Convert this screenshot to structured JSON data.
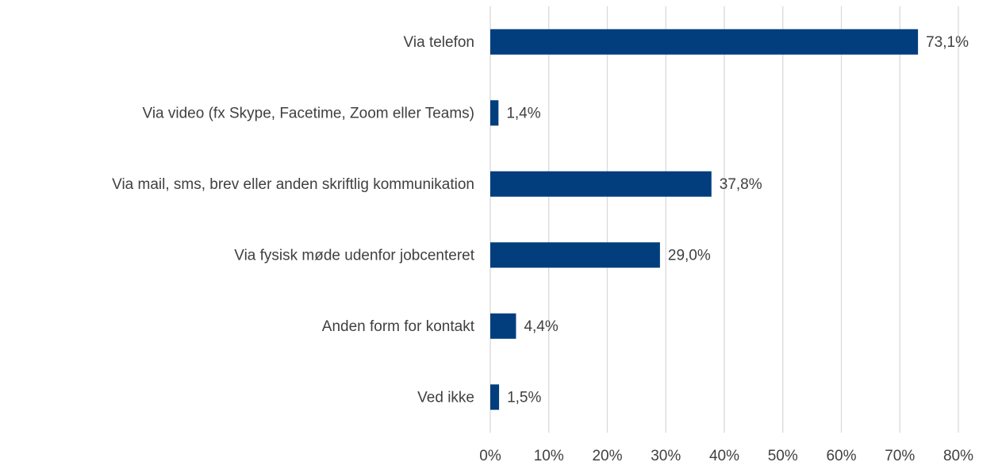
{
  "chart_data": {
    "type": "barh",
    "categories": [
      "Via telefon",
      "Via video (fx Skype, Facetime, Zoom eller Teams)",
      "Via mail, sms, brev eller anden skriftlig kommunikation",
      "Via fysisk møde udenfor jobcenteret",
      "Anden form for kontakt",
      "Ved ikke"
    ],
    "values": [
      73.1,
      1.4,
      37.8,
      29.0,
      4.4,
      1.5
    ],
    "value_labels": [
      "73,1%",
      "1,4%",
      "37,8%",
      "29,0%",
      "4,4%",
      "1,5%"
    ],
    "color": "#023e7d",
    "xlim": [
      0,
      80
    ],
    "xticks": [
      {
        "value": 0,
        "label": "0%"
      },
      {
        "value": 10,
        "label": "10%"
      },
      {
        "value": 20,
        "label": "20%"
      },
      {
        "value": 30,
        "label": "30%"
      },
      {
        "value": 40,
        "label": "40%"
      },
      {
        "value": 50,
        "label": "50%"
      },
      {
        "value": 60,
        "label": "60%"
      },
      {
        "value": 70,
        "label": "70%"
      },
      {
        "value": 80,
        "label": "80%"
      }
    ],
    "grid": true
  }
}
